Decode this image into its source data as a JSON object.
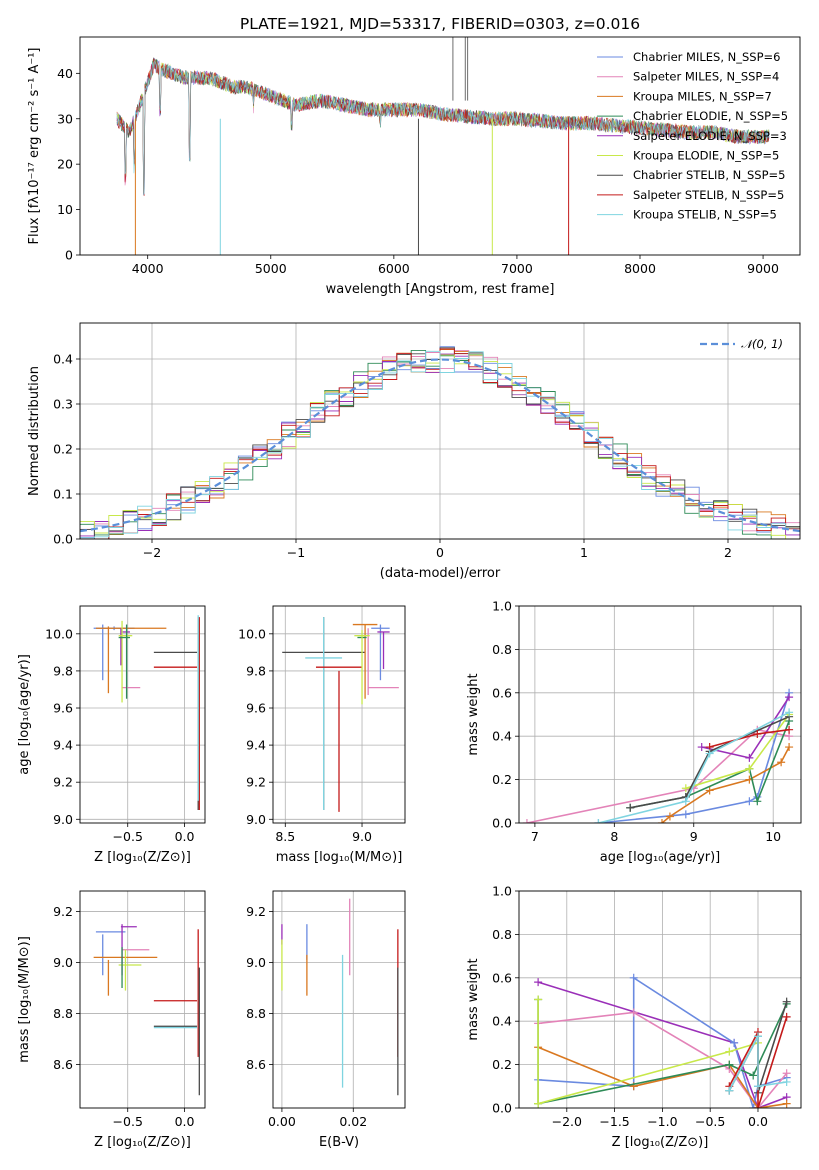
{
  "title": "PLATE=1921, MJD=53317, FIBERID=0303, z=0.016",
  "colors": {
    "chabrier_miles": "#6a8ae0",
    "salpeter_miles": "#e383b8",
    "kroupa_miles": "#d97820",
    "chabrier_elodie": "#2e8b57",
    "salpeter_elodie": "#9a2fb8",
    "kroupa_elodie": "#c8e84a",
    "chabrier_stelib": "#4a4a4a",
    "salpeter_stelib": "#c41a1a",
    "kroupa_stelib": "#7fd4e0",
    "gauss": "#5b8fd9"
  },
  "chart_data": [
    {
      "id": "spectrum",
      "type": "line",
      "xlabel": "wavelength [Angstrom, rest frame]",
      "ylabel": "Flux [fλ10⁻¹⁷ erg cm⁻² s⁻¹ A⁻¹]",
      "xlim": [
        3450,
        9300
      ],
      "ylim": [
        0,
        48
      ],
      "xticks": [
        "4000",
        "5000",
        "6000",
        "7000",
        "8000",
        "9000"
      ],
      "yticks": [
        "0",
        "10",
        "20",
        "30",
        "40"
      ],
      "spectrum_envelope": {
        "x": [
          3750,
          3850,
          3950,
          4050,
          4100,
          4200,
          4300,
          4400,
          4500,
          4600,
          4700,
          4800,
          4900,
          5000,
          5200,
          5400,
          5600,
          5800,
          6000,
          6200,
          6400,
          6600,
          6800,
          7000,
          7200,
          7400,
          7600,
          7800,
          8000,
          8200,
          8400,
          8600,
          8800,
          9000
        ],
        "y": [
          30,
          27,
          34,
          42,
          41,
          40,
          39,
          39,
          39,
          38,
          37,
          37,
          36,
          35,
          33,
          34,
          33,
          32,
          32,
          32,
          31,
          30.5,
          30,
          30,
          29.5,
          29,
          29,
          28.5,
          28,
          27.5,
          27,
          27,
          26,
          26
        ]
      },
      "legend": [
        "Chabrier MILES, N_SSP=6",
        "Salpeter MILES, N_SSP=4",
        "Kroupa MILES, N_SSP=7",
        "Chabrier ELODIE, N_SSP=5",
        "Salpeter ELODIE, N_SSP=3",
        "Kroupa ELODIE, N_SSP=5",
        "Chabrier STELIB, N_SSP=5",
        "Salpeter STELIB, N_SSP=5",
        "Kroupa STELIB, N_SSP=5"
      ],
      "legend_placement": "top-right",
      "grid": false
    },
    {
      "id": "residuals",
      "type": "line",
      "xlabel": "(data-model)/error",
      "ylabel": "Normed distribution",
      "xlim": [
        -2.5,
        2.5
      ],
      "ylim": [
        0,
        0.48
      ],
      "xticks": [
        "−2",
        "−1",
        "0",
        "1",
        "2"
      ],
      "yticks": [
        "0.0",
        "0.1",
        "0.2",
        "0.3",
        "0.4"
      ],
      "legend": [
        "𝒩(0, 1)"
      ],
      "legend_placement": "top-right",
      "grid": true,
      "bin_width": 0.1
    },
    {
      "id": "age_vs_Z",
      "type": "scatter",
      "xlabel": "Z [log₁₀(Z/Z⊙)]",
      "ylabel": "age  [log₁₀(age/yr)]",
      "xlim": [
        -0.92,
        0.18
      ],
      "ylim": [
        8.98,
        10.15
      ],
      "xticks": [
        "−0.5",
        "0.0"
      ],
      "yticks": [
        "9.0",
        "9.2",
        "9.4",
        "9.6",
        "9.8",
        "10.0"
      ],
      "grid": true,
      "series": [
        {
          "key": "chabrier_miles",
          "x": -0.62,
          "xerr": 0.18,
          "y": 10.03,
          "yerr": 0.01
        },
        {
          "key": "chabrier_miles",
          "x": -0.72,
          "xerr": 0.0,
          "y": 9.9,
          "yerr": 0.15
        },
        {
          "key": "kroupa_miles",
          "x": -0.47,
          "xerr": 0.31,
          "y": 10.03,
          "yerr": 0.0
        },
        {
          "key": "kroupa_miles",
          "x": -0.67,
          "xerr": 0.0,
          "y": 9.86,
          "yerr": 0.18
        },
        {
          "key": "salpeter_miles",
          "x": -0.47,
          "xerr": 0.08,
          "y": 9.71,
          "yerr": 0.0
        },
        {
          "key": "salpeter_elodie",
          "x": -0.52,
          "xerr": 0.04,
          "y": 10.01,
          "yerr": 0.0
        },
        {
          "key": "salpeter_elodie",
          "x": -0.56,
          "xerr": 0.0,
          "y": 9.93,
          "yerr": 0.1
        },
        {
          "key": "kroupa_elodie",
          "x": -0.52,
          "xerr": 0.06,
          "y": 9.99,
          "yerr": 0.0
        },
        {
          "key": "kroupa_elodie",
          "x": -0.55,
          "xerr": 0.0,
          "y": 9.85,
          "yerr": 0.22
        },
        {
          "key": "chabrier_elodie",
          "x": -0.53,
          "xerr": 0.05,
          "y": 9.98,
          "yerr": 0.0
        },
        {
          "key": "chabrier_elodie",
          "x": -0.51,
          "xerr": 0.0,
          "y": 9.85,
          "yerr": 0.2
        },
        {
          "key": "chabrier_stelib",
          "x": -0.08,
          "xerr": 0.19,
          "y": 9.9,
          "yerr": 0.0
        },
        {
          "key": "chabrier_stelib",
          "x": 0.12,
          "xerr": 0.0,
          "y": 9.57,
          "yerr": 0.52
        },
        {
          "key": "salpeter_stelib",
          "x": -0.08,
          "xerr": 0.19,
          "y": 9.82,
          "yerr": 0.0
        },
        {
          "key": "salpeter_stelib",
          "x": 0.13,
          "xerr": 0.0,
          "y": 9.57,
          "yerr": 0.52
        },
        {
          "key": "kroupa_stelib",
          "x": 0.12,
          "xerr": 0.0,
          "y": 9.6,
          "yerr": 0.5
        }
      ]
    },
    {
      "id": "age_vs_mass",
      "type": "scatter",
      "xlabel": "mass [log₁₀(M/M⊙)]",
      "ylabel": "",
      "xlim": [
        8.42,
        9.28
      ],
      "ylim": [
        8.98,
        10.15
      ],
      "xticks": [
        "8.5",
        "9.0"
      ],
      "yticks": [
        "9.0",
        "9.2",
        "9.4",
        "9.6",
        "9.8",
        "10.0"
      ],
      "grid": true,
      "series": [
        {
          "key": "chabrier_stelib",
          "x": 8.75,
          "xerr": 0.27,
          "y": 9.9,
          "yerr": 0.0
        },
        {
          "key": "chabrier_stelib",
          "x": 8.75,
          "xerr": 0.0,
          "y": 9.57,
          "yerr": 0.52
        },
        {
          "key": "kroupa_stelib",
          "x": 8.75,
          "xerr": 0.12,
          "y": 9.87,
          "yerr": 0.0
        },
        {
          "key": "kroupa_stelib",
          "x": 8.75,
          "xerr": 0.0,
          "y": 9.57,
          "yerr": 0.52
        },
        {
          "key": "salpeter_stelib",
          "x": 8.85,
          "xerr": 0.15,
          "y": 9.82,
          "yerr": 0.0
        },
        {
          "key": "salpeter_stelib",
          "x": 8.85,
          "xerr": 0.0,
          "y": 9.42,
          "yerr": 0.38
        },
        {
          "key": "kroupa_miles",
          "x": 9.02,
          "xerr": 0.08,
          "y": 10.05,
          "yerr": 0.0
        },
        {
          "key": "kroupa_miles",
          "x": 9.02,
          "xerr": 0.0,
          "y": 9.85,
          "yerr": 0.2
        },
        {
          "key": "chabrier_miles",
          "x": 9.12,
          "xerr": 0.06,
          "y": 10.03,
          "yerr": 0.0
        },
        {
          "key": "chabrier_miles",
          "x": 9.12,
          "xerr": 0.0,
          "y": 9.9,
          "yerr": 0.15
        },
        {
          "key": "salpeter_elodie",
          "x": 9.14,
          "xerr": 0.04,
          "y": 10.01,
          "yerr": 0.0
        },
        {
          "key": "salpeter_elodie",
          "x": 9.14,
          "xerr": 0.0,
          "y": 9.91,
          "yerr": 0.1
        },
        {
          "key": "salpeter_miles",
          "x": 9.04,
          "xerr": 0.0,
          "y": 9.85,
          "yerr": 0.18
        },
        {
          "key": "salpeter_miles",
          "x": 9.14,
          "xerr": 0.1,
          "y": 9.71,
          "yerr": 0.0
        },
        {
          "key": "chabrier_elodie",
          "x": 9.0,
          "xerr": 0.03,
          "y": 9.98,
          "yerr": 0.0
        },
        {
          "key": "kroupa_elodie",
          "x": 9.0,
          "xerr": 0.05,
          "y": 9.99,
          "yerr": 0.0
        },
        {
          "key": "kroupa_elodie",
          "x": 9.0,
          "xerr": 0.0,
          "y": 9.82,
          "yerr": 0.2
        }
      ]
    },
    {
      "id": "mw_vs_age",
      "type": "line",
      "xlabel": "age  [log₁₀(age/yr)]",
      "ylabel": "mass weight",
      "xlim": [
        6.8,
        10.35
      ],
      "ylim": [
        0,
        1
      ],
      "xticks": [
        "7",
        "8",
        "9",
        "10"
      ],
      "yticks": [
        "0.0",
        "0.2",
        "0.4",
        "0.6",
        "0.8",
        "1.0"
      ],
      "grid": true,
      "series": [
        {
          "key": "salpeter_miles",
          "x": [
            6.9,
            9.0,
            9.8,
            10.2
          ],
          "y": [
            0.0,
            0.16,
            0.43,
            0.4
          ]
        },
        {
          "key": "chabrier_miles",
          "x": [
            7.8,
            8.9,
            9.7,
            9.8,
            10.2
          ],
          "y": [
            0.0,
            0.04,
            0.1,
            0.12,
            0.6
          ]
        },
        {
          "key": "kroupa_miles",
          "x": [
            8.6,
            8.7,
            9.2,
            9.7,
            10.1,
            10.2
          ],
          "y": [
            0.0,
            0.03,
            0.15,
            0.2,
            0.28,
            0.35
          ]
        },
        {
          "key": "chabrier_elodie",
          "x": [
            8.2,
            8.9,
            9.7,
            9.8,
            10.2
          ],
          "y": [
            0.07,
            0.12,
            0.25,
            0.1,
            0.47
          ]
        },
        {
          "key": "salpeter_elodie",
          "x": [
            9.1,
            9.7,
            10.2
          ],
          "y": [
            0.35,
            0.3,
            0.58
          ]
        },
        {
          "key": "kroupa_elodie",
          "x": [
            8.9,
            9.7,
            10.2
          ],
          "y": [
            0.16,
            0.25,
            0.5
          ]
        },
        {
          "key": "chabrier_stelib",
          "x": [
            8.2,
            8.9,
            9.2,
            10.2
          ],
          "y": [
            0.07,
            0.12,
            0.33,
            0.49
          ]
        },
        {
          "key": "salpeter_stelib",
          "x": [
            9.2,
            9.8,
            10.2
          ],
          "y": [
            0.35,
            0.41,
            0.43
          ]
        },
        {
          "key": "kroupa_stelib",
          "x": [
            7.8,
            8.9,
            9.2,
            10.2
          ],
          "y": [
            0.0,
            0.1,
            0.32,
            0.51
          ]
        }
      ]
    },
    {
      "id": "mass_vs_Z",
      "type": "scatter",
      "xlabel": "Z [log₁₀(Z/Z⊙)]",
      "ylabel": "mass [log₁₀(M/M⊙)]",
      "xlim": [
        -0.92,
        0.18
      ],
      "ylim": [
        8.43,
        9.28
      ],
      "xticks": [
        "−0.5",
        "0.0"
      ],
      "yticks": [
        "8.6",
        "8.8",
        "9.0",
        "9.2"
      ],
      "grid": true,
      "series": [
        {
          "key": "chabrier_miles",
          "x": -0.65,
          "xerr": 0.13,
          "y": 9.12,
          "yerr": 0.0
        },
        {
          "key": "chabrier_miles",
          "x": -0.72,
          "xerr": 0.0,
          "y": 9.03,
          "yerr": 0.08
        },
        {
          "key": "kroupa_miles",
          "x": -0.52,
          "xerr": 0.28,
          "y": 9.02,
          "yerr": 0.0
        },
        {
          "key": "kroupa_miles",
          "x": -0.67,
          "xerr": 0.0,
          "y": 8.94,
          "yerr": 0.07
        },
        {
          "key": "salpeter_miles",
          "x": -0.43,
          "xerr": 0.12,
          "y": 9.05,
          "yerr": 0.0
        },
        {
          "key": "salpeter_elodie",
          "x": -0.49,
          "xerr": 0.07,
          "y": 9.14,
          "yerr": 0.0
        },
        {
          "key": "salpeter_elodie",
          "x": -0.55,
          "xerr": 0.0,
          "y": 9.05,
          "yerr": 0.1
        },
        {
          "key": "kroupa_elodie",
          "x": -0.48,
          "xerr": 0.1,
          "y": 8.99,
          "yerr": 0.0
        },
        {
          "key": "kroupa_elodie",
          "x": -0.52,
          "xerr": 0.0,
          "y": 8.97,
          "yerr": 0.08
        },
        {
          "key": "chabrier_elodie",
          "x": -0.55,
          "xerr": 0.0,
          "y": 8.98,
          "yerr": 0.08
        },
        {
          "key": "salpeter_stelib",
          "x": -0.08,
          "xerr": 0.19,
          "y": 8.85,
          "yerr": 0.0
        },
        {
          "key": "salpeter_stelib",
          "x": 0.12,
          "xerr": 0.0,
          "y": 8.88,
          "yerr": 0.25
        },
        {
          "key": "chabrier_stelib",
          "x": -0.08,
          "xerr": 0.19,
          "y": 8.75,
          "yerr": 0.0
        },
        {
          "key": "chabrier_stelib",
          "x": 0.13,
          "xerr": 0.0,
          "y": 8.73,
          "yerr": 0.25
        },
        {
          "key": "kroupa_stelib",
          "x": -0.08,
          "xerr": 0.19,
          "y": 8.745,
          "yerr": 0.0
        }
      ]
    },
    {
      "id": "mass_vs_ebv",
      "type": "scatter",
      "xlabel": "E(B-V)",
      "ylabel": "",
      "xlim": [
        -0.0025,
        0.0345
      ],
      "ylim": [
        8.43,
        9.28
      ],
      "xticks": [
        "0.00",
        "0.02"
      ],
      "yticks": [
        "8.6",
        "8.8",
        "9.0",
        "9.2"
      ],
      "grid": true,
      "series": [
        {
          "key": "salpeter_elodie",
          "x": 0.0,
          "xerr": 0.0,
          "y": 9.11,
          "yerr": 0.04
        },
        {
          "key": "kroupa_elodie",
          "x": 0.0,
          "xerr": 0.0,
          "y": 8.99,
          "yerr": 0.1
        },
        {
          "key": "chabrier_miles",
          "x": 0.007,
          "xerr": 0.0,
          "y": 9.08,
          "yerr": 0.07
        },
        {
          "key": "kroupa_miles",
          "x": 0.007,
          "xerr": 0.0,
          "y": 8.95,
          "yerr": 0.08
        },
        {
          "key": "kroupa_stelib",
          "x": 0.017,
          "xerr": 0.0,
          "y": 8.77,
          "yerr": 0.26
        },
        {
          "key": "salpeter_miles",
          "x": 0.019,
          "xerr": 0.0,
          "y": 9.1,
          "yerr": 0.15
        },
        {
          "key": "salpeter_stelib",
          "x": 0.0325,
          "xerr": 0.0,
          "y": 8.88,
          "yerr": 0.25
        },
        {
          "key": "chabrier_stelib",
          "x": 0.0325,
          "xerr": 0.0,
          "y": 8.73,
          "yerr": 0.25
        }
      ]
    },
    {
      "id": "mw_vs_Z",
      "type": "line",
      "xlabel": "Z [log₁₀(Z/Z⊙)]",
      "ylabel": "mass weight",
      "xlim": [
        -2.5,
        0.45
      ],
      "ylim": [
        0,
        1
      ],
      "xticks": [
        "−2.0",
        "−1.5",
        "−1.0",
        "−0.5",
        "0.0"
      ],
      "yticks": [
        "0.0",
        "0.2",
        "0.4",
        "0.6",
        "0.8",
        "1.0"
      ],
      "grid": true,
      "series": [
        {
          "key": "salpeter_elodie",
          "x": [
            -2.3,
            -0.25,
            0.0,
            0.3
          ],
          "y": [
            0.58,
            0.3,
            0.0,
            0.05
          ]
        },
        {
          "key": "chabrier_miles",
          "x": [
            -2.3,
            -1.3,
            -1.3,
            -0.25,
            -0.05,
            0.0,
            0.3
          ],
          "y": [
            0.13,
            0.1,
            0.6,
            0.3,
            0.0,
            0.1,
            0.14
          ]
        },
        {
          "key": "salpeter_miles",
          "x": [
            -2.3,
            -1.3,
            -0.3,
            0.0,
            0.3
          ],
          "y": [
            0.39,
            0.44,
            0.18,
            0.0,
            0.16
          ]
        },
        {
          "key": "kroupa_miles",
          "x": [
            -2.3,
            -1.3,
            -0.3,
            0.0,
            0.3
          ],
          "y": [
            0.28,
            0.1,
            0.2,
            0.0,
            0.02
          ]
        },
        {
          "key": "chabrier_elodie",
          "x": [
            -2.3,
            -2.3,
            -0.3,
            -0.05,
            0.3
          ],
          "y": [
            0.5,
            0.02,
            0.2,
            0.15,
            0.48
          ]
        },
        {
          "key": "kroupa_elodie",
          "x": [
            -2.3,
            -2.3,
            -0.3,
            0.0
          ],
          "y": [
            0.5,
            0.02,
            0.26,
            0.3
          ]
        },
        {
          "key": "chabrier_stelib",
          "x": [
            -0.3,
            0.0,
            0.0,
            0.3
          ],
          "y": [
            0.08,
            0.33,
            0.07,
            0.49
          ]
        },
        {
          "key": "salpeter_stelib",
          "x": [
            -0.3,
            0.0,
            0.0,
            0.3
          ],
          "y": [
            0.1,
            0.35,
            0.0,
            0.42
          ]
        },
        {
          "key": "kroupa_stelib",
          "x": [
            -0.3,
            0.0,
            0.0,
            0.3
          ],
          "y": [
            0.08,
            0.33,
            0.1,
            0.12
          ]
        }
      ]
    }
  ]
}
